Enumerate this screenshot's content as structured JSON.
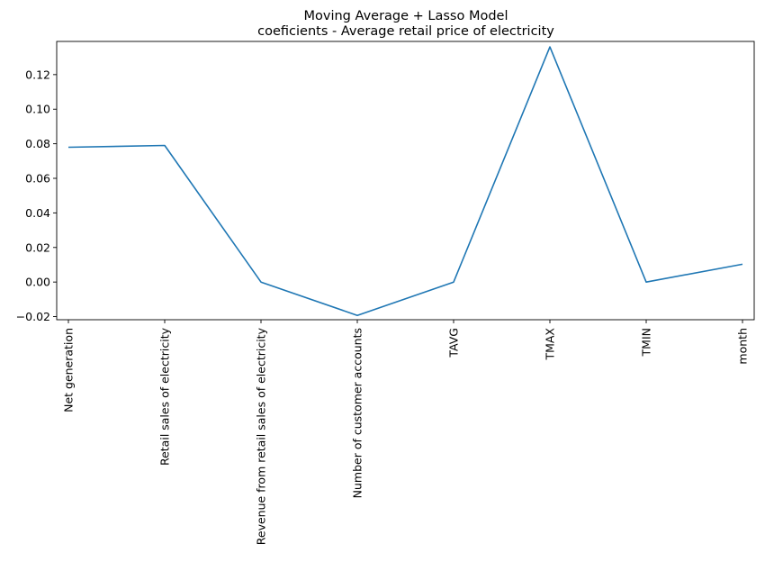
{
  "chart_data": {
    "type": "line",
    "title_line1": "Moving Average + Lasso Model",
    "title_line2": "coeficients - Average retail price of electricity",
    "xlabel": "",
    "ylabel": "",
    "categories": [
      "Net generation",
      "Retail sales of electricity",
      "Revenue from retail sales of electricity",
      "Number of customer accounts",
      "TAVG",
      "TMAX",
      "TMIN",
      "month"
    ],
    "series": [
      {
        "values": [
          0.078,
          0.079,
          0.0,
          -0.0193,
          0.0,
          0.136,
          0.0,
          0.0103
        ],
        "color": "#1f77b4"
      }
    ],
    "yticks": [
      -0.02,
      0.0,
      0.02,
      0.04,
      0.06,
      0.08,
      0.1,
      0.12
    ],
    "ytick_labels": [
      "−0.02",
      "0.00",
      "0.02",
      "0.04",
      "0.06",
      "0.08",
      "0.10",
      "0.12"
    ],
    "ylim": [
      -0.0218,
      0.1392
    ],
    "grid": false,
    "legend": "none"
  }
}
